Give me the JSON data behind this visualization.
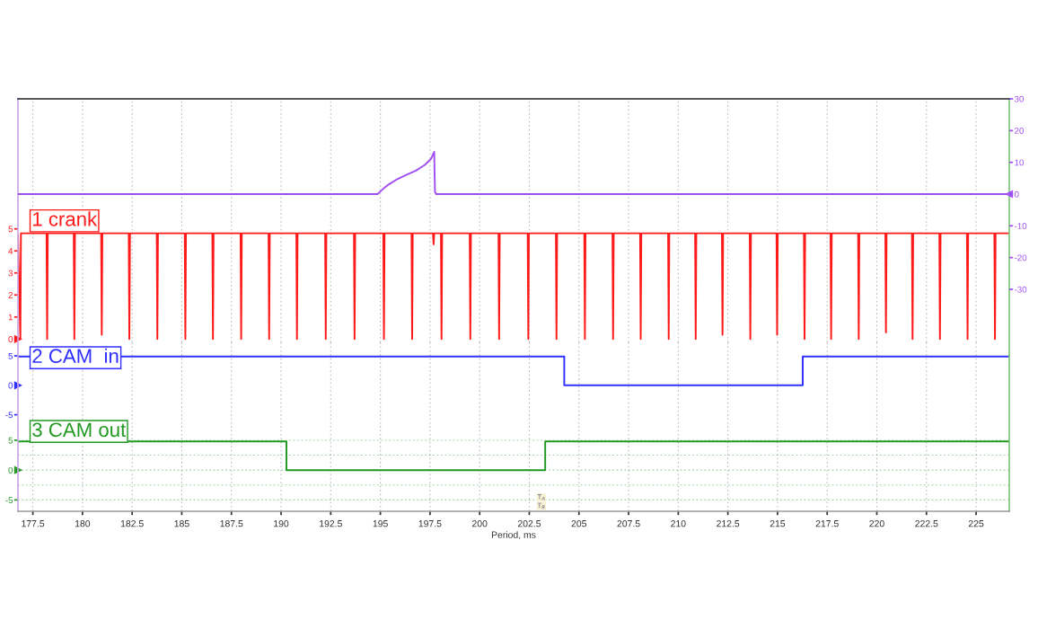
{
  "chart_data": [
    {
      "type": "line",
      "tick_labels": "y",
      "grid": "x",
      "xlim": [
        176.75,
        226.67
      ],
      "xticks": [
        177.5,
        180,
        182.5,
        185,
        187.5,
        190,
        192.5,
        195,
        197.5,
        200,
        202.5,
        205,
        207.5,
        210,
        212.5,
        215,
        217.5,
        220,
        222.5,
        225
      ],
      "ylim": [
        -0.15,
        10.9
      ],
      "yticks": [
        0,
        1,
        2,
        3,
        4,
        5
      ],
      "y2lim": [
        -46.7,
        30
      ],
      "y2ticks": [
        -30,
        -20,
        -10,
        0,
        10,
        20,
        30
      ],
      "series": [
        {
          "name": "1 crank",
          "color": "#ff1a1a",
          "axis": "y",
          "x": [
            176.75,
            176.87,
            176.9,
            178.19,
            178.22,
            178.25,
            179.56,
            179.59,
            179.62,
            180.94,
            180.97,
            181.0,
            182.33,
            182.36,
            182.39,
            183.74,
            183.77,
            183.8,
            185.15,
            185.18,
            185.21,
            186.54,
            186.57,
            186.6,
            187.96,
            187.99,
            188.02,
            189.37,
            189.4,
            189.43,
            190.77,
            190.8,
            190.83,
            192.22,
            192.25,
            192.28,
            193.67,
            193.7,
            193.73,
            195.15,
            195.18,
            195.21,
            196.57,
            196.6,
            196.63,
            197.65,
            197.68,
            197.71,
            198.05,
            198.08,
            198.11,
            199.5,
            199.53,
            199.56,
            200.95,
            200.98,
            201.01,
            202.42,
            202.45,
            202.48,
            203.84,
            203.87,
            203.9,
            205.27,
            205.3,
            205.33,
            206.69,
            206.72,
            206.75,
            208.08,
            208.11,
            208.14,
            209.49,
            209.52,
            209.55,
            210.85,
            210.88,
            210.91,
            212.2,
            212.23,
            212.26,
            213.6,
            213.63,
            213.66,
            214.95,
            214.98,
            215.01,
            216.33,
            216.36,
            216.39,
            217.67,
            217.7,
            217.73,
            219.06,
            219.09,
            219.12,
            220.43,
            220.46,
            220.49,
            221.77,
            221.8,
            221.83,
            223.15,
            223.18,
            223.21,
            224.54,
            224.57,
            224.6,
            225.92,
            225.95,
            225.98,
            226.67
          ],
          "values": [
            4.7,
            0,
            4.8,
            4.8,
            0,
            4.8,
            4.8,
            0,
            4.8,
            4.8,
            0.2,
            4.8,
            4.8,
            0,
            4.8,
            4.8,
            0,
            4.8,
            4.8,
            0,
            4.8,
            4.8,
            0,
            4.8,
            4.8,
            0,
            4.8,
            4.8,
            0,
            4.8,
            4.8,
            0,
            4.8,
            4.8,
            0,
            4.8,
            4.8,
            0,
            4.8,
            4.8,
            0,
            4.8,
            4.8,
            0,
            4.8,
            4.8,
            4.3,
            4.8,
            4.8,
            0,
            4.8,
            4.8,
            0,
            4.8,
            4.8,
            0,
            4.8,
            4.8,
            0,
            4.8,
            4.8,
            0,
            4.8,
            4.8,
            0,
            4.8,
            4.8,
            0,
            4.8,
            4.8,
            0,
            4.8,
            4.8,
            0,
            4.8,
            4.8,
            0,
            4.8,
            4.8,
            0.2,
            4.8,
            4.8,
            0,
            4.8,
            4.8,
            0.2,
            4.8,
            4.8,
            0,
            4.8,
            4.8,
            0,
            4.8,
            4.8,
            0,
            4.8,
            4.8,
            0.3,
            4.8,
            4.8,
            0,
            4.8,
            4.8,
            0,
            4.8,
            4.8,
            0,
            4.8,
            4.8,
            0,
            4.8,
            4.8
          ]
        },
        {
          "color": "#a050f0",
          "axis": "y2",
          "x": [
            176.75,
            194.86,
            195.13,
            195.43,
            195.88,
            196.33,
            196.79,
            197.24,
            197.55,
            197.71,
            197.75,
            197.81,
            226.67
          ],
          "values": [
            0,
            0,
            1.6,
            3.1,
            4.8,
            6.1,
            7.4,
            9.2,
            11.1,
            13.3,
            0.7,
            0,
            0
          ]
        }
      ]
    },
    {
      "type": "line",
      "tick_labels": "y",
      "grid": "x",
      "xlim": [
        176.75,
        226.67
      ],
      "xticks": [
        177.5,
        180,
        182.5,
        185,
        187.5,
        190,
        192.5,
        195,
        197.5,
        200,
        202.5,
        205,
        207.5,
        210,
        212.5,
        215,
        217.5,
        220,
        222.5,
        225
      ],
      "ylim": [
        -7.2,
        7.3
      ],
      "yticks": [
        -5,
        0,
        5
      ],
      "series": [
        {
          "name": "2 CAM  in",
          "color": "#3030ff",
          "x": [
            176.75,
            204.26,
            204.26,
            216.27,
            216.27,
            226.67
          ],
          "values": [
            4.9,
            4.9,
            0,
            0,
            4.9,
            4.9
          ]
        }
      ]
    },
    {
      "type": "line",
      "grid": true,
      "xlabel": "Period, ms",
      "xlim": [
        176.75,
        226.67
      ],
      "xticks": [
        177.5,
        180,
        182.5,
        185,
        187.5,
        190,
        192.5,
        195,
        197.5,
        200,
        202.5,
        205,
        207.5,
        210,
        212.5,
        215,
        217.5,
        220,
        222.5,
        225
      ],
      "ylim": [
        -6.9,
        7.1
      ],
      "yticks": [
        -5,
        0,
        5
      ],
      "annotations": [
        "T$_{A}$",
        "T$_{R}$"
      ],
      "series": [
        {
          "name": "3 CAM out",
          "color": "#229922",
          "x": [
            176.75,
            190.27,
            190.27,
            203.3,
            203.3,
            226.67
          ],
          "values": [
            4.8,
            4.8,
            0,
            0,
            4.8,
            4.8
          ]
        }
      ]
    }
  ]
}
